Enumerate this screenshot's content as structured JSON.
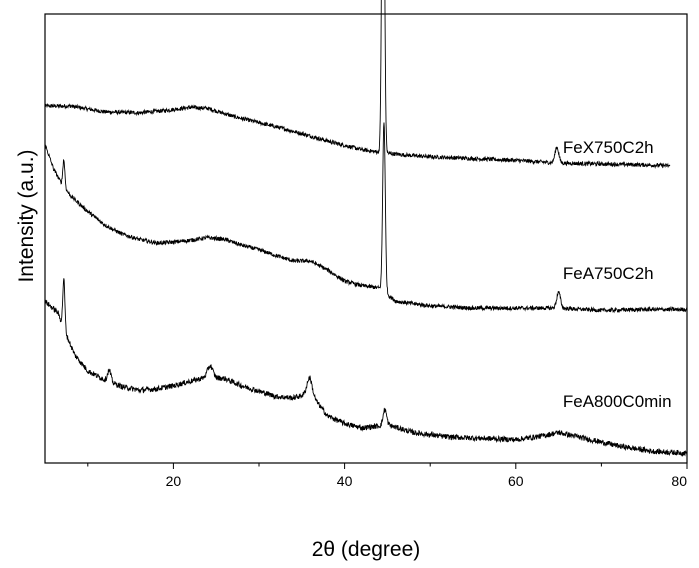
{
  "chart_data": {
    "type": "line",
    "title": "",
    "xlabel": "2θ (degree)",
    "ylabel": "Intensity (a.u.)",
    "xlim": [
      5,
      80
    ],
    "ylim": [
      0,
      10
    ],
    "x_ticks": [
      20,
      40,
      60,
      80
    ],
    "x_tick_labels": [
      "20",
      "40",
      "60",
      "80"
    ],
    "y_ticks_shown": false,
    "legend": "none",
    "grid": false,
    "line_color": "#000000",
    "series": [
      {
        "name": "FeX750C2h",
        "label_x": 65.5,
        "label_y": 6.9,
        "baseline_points": [
          [
            5.0,
            7.95
          ],
          [
            8.0,
            7.95
          ],
          [
            12.0,
            7.82
          ],
          [
            16.0,
            7.8
          ],
          [
            19.0,
            7.85
          ],
          [
            22.0,
            7.92
          ],
          [
            24.0,
            7.9
          ],
          [
            27.0,
            7.72
          ],
          [
            30.0,
            7.58
          ],
          [
            33.0,
            7.44
          ],
          [
            36.0,
            7.28
          ],
          [
            39.0,
            7.12
          ],
          [
            42.0,
            6.98
          ],
          [
            44.0,
            6.92
          ],
          [
            47.0,
            6.86
          ],
          [
            50.0,
            6.82
          ],
          [
            55.0,
            6.78
          ],
          [
            60.0,
            6.74
          ],
          [
            65.0,
            6.68
          ],
          [
            70.0,
            6.66
          ],
          [
            75.0,
            6.64
          ],
          [
            78.0,
            6.62
          ]
        ],
        "peaks": [
          [
            44.5,
            9.4,
            0.15
          ],
          [
            64.8,
            0.35,
            0.22
          ]
        ],
        "noise": 0.045
      },
      {
        "name": "FeA750C2h",
        "label_x": 65.5,
        "label_y": 4.1,
        "baseline_points": [
          [
            5.0,
            7.1
          ],
          [
            6.0,
            6.55
          ],
          [
            7.0,
            6.2
          ],
          [
            8.0,
            5.95
          ],
          [
            10.0,
            5.6
          ],
          [
            12.0,
            5.3
          ],
          [
            14.0,
            5.1
          ],
          [
            16.0,
            4.98
          ],
          [
            18.0,
            4.9
          ],
          [
            20.0,
            4.92
          ],
          [
            22.0,
            4.96
          ],
          [
            24.0,
            5.02
          ],
          [
            26.0,
            4.98
          ],
          [
            28.0,
            4.85
          ],
          [
            30.0,
            4.75
          ],
          [
            32.0,
            4.62
          ],
          [
            34.0,
            4.5
          ],
          [
            36.0,
            4.5
          ],
          [
            38.0,
            4.3
          ],
          [
            40.0,
            4.05
          ],
          [
            42.0,
            3.95
          ],
          [
            44.0,
            3.9
          ],
          [
            46.0,
            3.6
          ],
          [
            48.0,
            3.55
          ],
          [
            50.0,
            3.5
          ],
          [
            55.0,
            3.45
          ],
          [
            60.0,
            3.45
          ],
          [
            65.0,
            3.45
          ],
          [
            70.0,
            3.4
          ],
          [
            75.0,
            3.42
          ],
          [
            80.0,
            3.42
          ]
        ],
        "peaks": [
          [
            7.2,
            0.6,
            0.12
          ],
          [
            44.6,
            3.8,
            0.15
          ],
          [
            65.0,
            0.35,
            0.22
          ]
        ],
        "noise": 0.045
      },
      {
        "name": "FeA800C0min",
        "label_x": 65.5,
        "label_y": 1.25,
        "baseline_points": [
          [
            5.0,
            3.6
          ],
          [
            6.5,
            3.35
          ],
          [
            7.5,
            2.85
          ],
          [
            8.5,
            2.4
          ],
          [
            10.0,
            2.05
          ],
          [
            12.0,
            1.85
          ],
          [
            14.0,
            1.7
          ],
          [
            16.0,
            1.62
          ],
          [
            18.0,
            1.65
          ],
          [
            20.0,
            1.72
          ],
          [
            22.0,
            1.82
          ],
          [
            24.0,
            1.92
          ],
          [
            26.0,
            1.88
          ],
          [
            28.0,
            1.72
          ],
          [
            30.0,
            1.6
          ],
          [
            32.0,
            1.48
          ],
          [
            34.0,
            1.45
          ],
          [
            36.0,
            1.55
          ],
          [
            38.0,
            1.05
          ],
          [
            40.0,
            0.88
          ],
          [
            42.0,
            0.78
          ],
          [
            45.0,
            0.85
          ],
          [
            48.0,
            0.68
          ],
          [
            52.0,
            0.58
          ],
          [
            56.0,
            0.55
          ],
          [
            60.0,
            0.52
          ],
          [
            63.0,
            0.6
          ],
          [
            65.0,
            0.68
          ],
          [
            68.0,
            0.55
          ],
          [
            72.0,
            0.38
          ],
          [
            76.0,
            0.26
          ],
          [
            80.0,
            0.22
          ]
        ],
        "peaks": [
          [
            7.2,
            1.1,
            0.12
          ],
          [
            12.5,
            0.25,
            0.2
          ],
          [
            24.3,
            0.25,
            0.3
          ],
          [
            35.9,
            0.35,
            0.3
          ],
          [
            44.7,
            0.35,
            0.2
          ]
        ],
        "noise": 0.06
      }
    ]
  }
}
